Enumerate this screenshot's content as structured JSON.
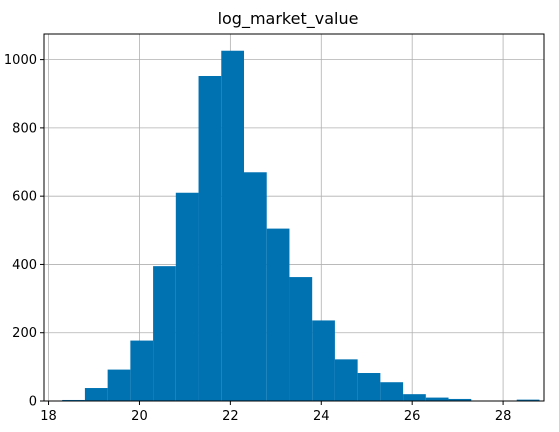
{
  "chart_data": {
    "type": "bar",
    "title": "log_market_value",
    "xlabel": "",
    "ylabel": "",
    "xlim": [
      17.9,
      28.9
    ],
    "ylim": [
      0,
      1075
    ],
    "grid": true,
    "color": "#0072b2",
    "bin_edges": [
      18.3,
      18.8,
      19.3,
      19.8,
      20.3,
      20.8,
      21.3,
      21.8,
      22.3,
      22.8,
      23.3,
      23.8,
      24.3,
      24.8,
      25.3,
      25.8,
      26.3,
      26.8,
      27.3,
      27.8,
      28.3,
      28.8
    ],
    "values": [
      3,
      38,
      92,
      177,
      395,
      610,
      952,
      1026,
      670,
      505,
      363,
      236,
      122,
      82,
      55,
      20,
      10,
      6,
      1,
      0,
      4
    ],
    "x_ticks": [
      18,
      20,
      22,
      24,
      26,
      28
    ],
    "y_ticks": [
      0,
      200,
      400,
      600,
      800,
      1000
    ]
  }
}
